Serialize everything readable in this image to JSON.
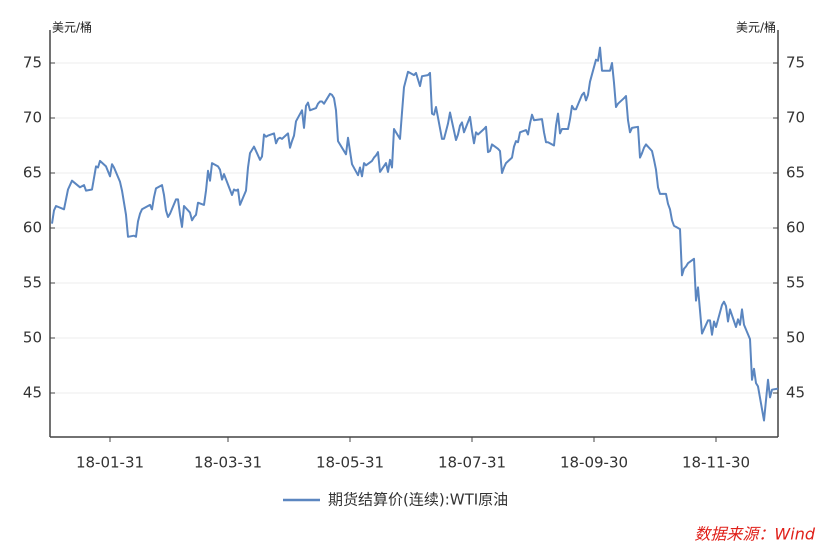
{
  "chart_data": {
    "type": "line",
    "y_label": "美元/桶",
    "y2_label": "美元/桶",
    "source": "数据来源：Wind",
    "x": [
      "18-01-02",
      "18-01-03",
      "18-01-04",
      "18-01-08",
      "18-01-10",
      "18-01-12",
      "18-01-16",
      "18-01-18",
      "18-01-19",
      "18-01-22",
      "18-01-24",
      "18-01-25",
      "18-01-26",
      "18-01-29",
      "18-01-31",
      "18-02-01",
      "18-02-02",
      "18-02-05",
      "18-02-06",
      "18-02-08",
      "18-02-09",
      "18-02-12",
      "18-02-13",
      "18-02-14",
      "18-02-15",
      "18-02-16",
      "18-02-20",
      "18-02-21",
      "18-02-22",
      "18-02-23",
      "18-02-26",
      "18-02-27",
      "18-02-28",
      "18-03-01",
      "18-03-02",
      "18-03-05",
      "18-03-06",
      "18-03-07",
      "18-03-08",
      "18-03-09",
      "18-03-12",
      "18-03-13",
      "18-03-14",
      "18-03-15",
      "18-03-16",
      "18-03-19",
      "18-03-20",
      "18-03-21",
      "18-03-22",
      "18-03-23",
      "18-03-26",
      "18-03-27",
      "18-03-28",
      "18-03-29",
      "18-04-02",
      "18-04-03",
      "18-04-04",
      "18-04-05",
      "18-04-06",
      "18-04-09",
      "18-04-10",
      "18-04-11",
      "18-04-12",
      "18-04-13",
      "18-04-16",
      "18-04-17",
      "18-04-18",
      "18-04-19",
      "18-04-20",
      "18-04-23",
      "18-04-24",
      "18-04-25",
      "18-04-26",
      "18-04-27",
      "18-04-30",
      "18-05-01",
      "18-05-02",
      "18-05-03",
      "18-05-04",
      "18-05-07",
      "18-05-08",
      "18-05-09",
      "18-05-10",
      "18-05-11",
      "18-05-14",
      "18-05-15",
      "18-05-16",
      "18-05-17",
      "18-05-18",
      "18-05-21",
      "18-05-22",
      "18-05-23",
      "18-05-24",
      "18-05-25",
      "18-05-29",
      "18-05-30",
      "18-05-31",
      "18-06-01",
      "18-06-04",
      "18-06-05",
      "18-06-06",
      "18-06-07",
      "18-06-08",
      "18-06-11",
      "18-06-12",
      "18-06-13",
      "18-06-14",
      "18-06-15",
      "18-06-18",
      "18-06-19",
      "18-06-20",
      "18-06-21",
      "18-06-22",
      "18-06-25",
      "18-06-26",
      "18-06-27",
      "18-06-28",
      "18-06-29",
      "18-07-02",
      "18-07-03",
      "18-07-05",
      "18-07-06",
      "18-07-09",
      "18-07-10",
      "18-07-11",
      "18-07-12",
      "18-07-13",
      "18-07-16",
      "18-07-17",
      "18-07-18",
      "18-07-19",
      "18-07-20",
      "18-07-23",
      "18-07-24",
      "18-07-25",
      "18-07-26",
      "18-07-27",
      "18-07-30",
      "18-07-31",
      "18-08-01",
      "18-08-02",
      "18-08-03",
      "18-08-06",
      "18-08-07",
      "18-08-08",
      "18-08-09",
      "18-08-10",
      "18-08-13",
      "18-08-14",
      "18-08-15",
      "18-08-16",
      "18-08-17",
      "18-08-20",
      "18-08-21",
      "18-08-22",
      "18-08-23",
      "18-08-24",
      "18-08-27",
      "18-08-28",
      "18-08-29",
      "18-08-30",
      "18-08-31",
      "18-09-04",
      "18-09-05",
      "18-09-06",
      "18-09-07",
      "18-09-10",
      "18-09-11",
      "18-09-12",
      "18-09-13",
      "18-09-14",
      "18-09-17",
      "18-09-18",
      "18-09-19",
      "18-09-20",
      "18-09-21",
      "18-09-24",
      "18-09-25",
      "18-09-26",
      "18-09-27",
      "18-09-28",
      "18-10-01",
      "18-10-02",
      "18-10-03",
      "18-10-04",
      "18-10-05",
      "18-10-08",
      "18-10-09",
      "18-10-10",
      "18-10-11",
      "18-10-12",
      "18-10-15",
      "18-10-16",
      "18-10-17",
      "18-10-18",
      "18-10-19",
      "18-10-22",
      "18-10-23",
      "18-10-24",
      "18-10-25",
      "18-10-26",
      "18-10-29",
      "18-10-30",
      "18-10-31",
      "18-11-01",
      "18-11-02",
      "18-11-05",
      "18-11-06",
      "18-11-07",
      "18-11-08",
      "18-11-09",
      "18-11-12",
      "18-11-13",
      "18-11-14",
      "18-11-15",
      "18-11-16",
      "18-11-19",
      "18-11-20",
      "18-11-21",
      "18-11-23",
      "18-11-26",
      "18-11-27",
      "18-11-28",
      "18-11-29",
      "18-11-30",
      "18-12-03",
      "18-12-04",
      "18-12-05",
      "18-12-06",
      "18-12-07",
      "18-12-10",
      "18-12-11",
      "18-12-12",
      "18-12-13",
      "18-12-14",
      "18-12-17",
      "18-12-18",
      "18-12-19",
      "18-12-20",
      "18-12-21",
      "18-12-24",
      "18-12-26",
      "18-12-27",
      "18-12-28",
      "18-12-31"
    ],
    "series": [
      {
        "name": "期货结算价(连续):WTI原油",
        "color": "#5b86c0",
        "values": [
          60.4,
          61.6,
          62.0,
          61.7,
          63.5,
          64.3,
          63.7,
          63.9,
          63.4,
          63.5,
          65.6,
          65.5,
          66.1,
          65.6,
          64.7,
          65.8,
          65.5,
          64.2,
          63.4,
          61.2,
          59.2,
          59.3,
          59.2,
          60.6,
          61.3,
          61.7,
          62.1,
          61.7,
          62.8,
          63.6,
          63.9,
          63.0,
          61.6,
          61.0,
          61.3,
          62.6,
          62.6,
          61.2,
          60.1,
          62.0,
          61.4,
          60.7,
          61.0,
          61.2,
          62.3,
          62.1,
          63.4,
          65.2,
          64.3,
          65.9,
          65.6,
          65.3,
          64.4,
          64.9,
          63.0,
          63.5,
          63.4,
          63.5,
          62.1,
          63.4,
          65.5,
          66.8,
          67.1,
          67.4,
          66.2,
          66.5,
          68.5,
          68.3,
          68.4,
          68.6,
          67.7,
          68.1,
          68.2,
          68.1,
          68.6,
          67.3,
          67.9,
          68.4,
          69.7,
          70.7,
          69.1,
          71.1,
          71.4,
          70.7,
          70.9,
          71.3,
          71.5,
          71.5,
          71.3,
          72.2,
          72.1,
          71.8,
          70.7,
          67.9,
          66.7,
          68.2,
          67.0,
          65.8,
          64.8,
          65.5,
          64.7,
          65.9,
          65.7,
          66.1,
          66.4,
          66.6,
          66.9,
          65.1,
          65.9,
          65.1,
          66.2,
          65.5,
          69.0,
          68.1,
          70.5,
          72.8,
          73.5,
          74.2,
          73.9,
          74.1,
          72.9,
          73.8,
          73.9,
          74.1,
          70.4,
          70.3,
          71.0,
          68.1,
          68.1,
          68.8,
          69.5,
          70.5,
          68.0,
          68.5,
          69.3,
          69.6,
          68.7,
          70.1,
          68.8,
          67.7,
          68.7,
          68.5,
          69.0,
          69.2,
          66.9,
          67.0,
          67.6,
          67.2,
          67.0,
          65.0,
          65.5,
          65.9,
          66.4,
          67.4,
          67.9,
          67.8,
          68.7,
          68.9,
          68.5,
          69.5,
          70.3,
          69.8,
          69.9,
          68.7,
          67.8,
          67.8,
          67.5,
          69.3,
          70.4,
          68.6,
          69.0,
          69.0,
          69.9,
          71.1,
          70.8,
          70.8,
          72.1,
          72.3,
          71.6,
          72.1,
          73.3,
          75.3,
          75.2,
          76.4,
          74.3,
          74.3,
          74.3,
          75.0,
          73.2,
          71.0,
          71.3,
          71.8,
          72.0,
          69.8,
          68.7,
          69.1,
          69.2,
          66.4,
          66.8,
          67.3,
          67.6,
          67.0,
          66.2,
          65.3,
          63.7,
          63.1,
          63.1,
          62.2,
          61.7,
          60.7,
          60.2,
          59.9,
          55.7,
          56.3,
          56.5,
          56.8,
          57.2,
          53.4,
          54.6,
          50.4,
          51.6,
          51.6,
          50.3,
          51.5,
          51.0,
          53.0,
          53.3,
          52.9,
          51.5,
          52.6,
          51.0,
          51.7,
          51.2,
          52.6,
          51.2,
          49.9,
          46.2,
          47.2,
          45.9,
          45.6,
          42.5,
          46.2,
          44.6,
          45.3,
          45.4
        ]
      }
    ],
    "xlim": [
      "18-01-01",
      "18-12-31"
    ],
    "xticks": [
      "18-01-31",
      "18-03-31",
      "18-05-31",
      "18-07-31",
      "18-09-30",
      "18-11-30"
    ],
    "ylim": [
      41,
      78
    ],
    "yticks": [
      45,
      50,
      55,
      60,
      65,
      70,
      75
    ],
    "y2lim": [
      41,
      78
    ],
    "y2ticks": [
      45,
      50,
      55,
      60,
      65,
      70,
      75
    ],
    "grid": true
  }
}
